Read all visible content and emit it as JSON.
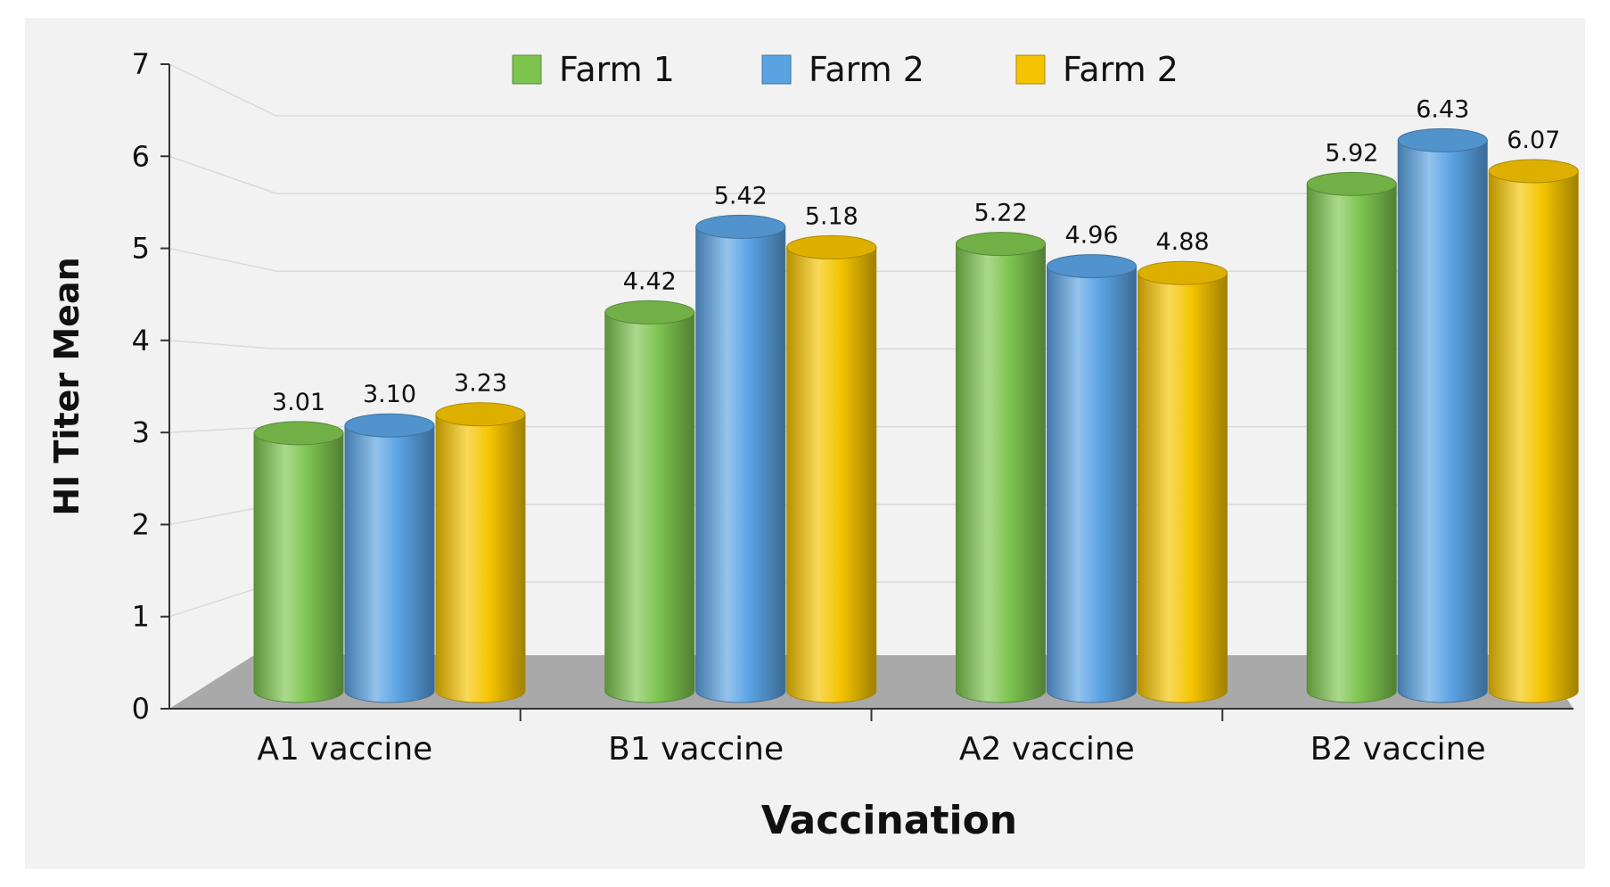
{
  "chart_data": {
    "type": "bar",
    "title": "",
    "xlabel": "Vaccination",
    "ylabel": "HI Titer Mean",
    "categories": [
      "A1 vaccine",
      "B1 vaccine",
      "A2 vaccine",
      "B2 vaccine"
    ],
    "series": [
      {
        "name": "Farm 1",
        "color": "#7dc44f",
        "values": [
          3.01,
          4.42,
          5.22,
          5.92
        ]
      },
      {
        "name": "Farm 2",
        "color": "#5aa3e3",
        "values": [
          3.1,
          5.42,
          4.96,
          6.43
        ]
      },
      {
        "name": "Farm 2",
        "color": "#f5c400",
        "values": [
          3.23,
          5.18,
          4.88,
          6.07
        ]
      }
    ],
    "ylim": [
      0,
      7
    ],
    "yticks": [
      0,
      1,
      2,
      3,
      4,
      5,
      6,
      7
    ],
    "legend_position": "top-center",
    "grid": true
  }
}
